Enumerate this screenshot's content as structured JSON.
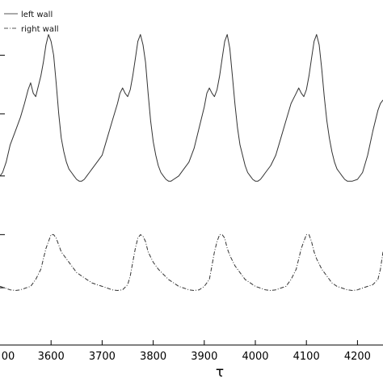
{
  "chart_data": {
    "type": "line",
    "xlabel": "τ",
    "ylabel": "",
    "xlim": [
      3500,
      4250
    ],
    "ylim": [
      0,
      1
    ],
    "x_ticks": [
      3600,
      3700,
      3800,
      3900,
      4000,
      4100,
      4200
    ],
    "x_tick_labels": [
      "3600",
      "3700",
      "3800",
      "3900",
      "4000",
      "4100",
      "4200"
    ],
    "x_tick_partial_label": "00",
    "x_tick_partial_value": 3500,
    "y_ticks": [
      0.166,
      0.32,
      0.49,
      0.67,
      0.84
    ],
    "legend": {
      "position": "top-left"
    },
    "grid": false,
    "series": [
      {
        "name": "left wall",
        "style": "solid",
        "x": [
          3500,
          3505,
          3512,
          3520,
          3530,
          3540,
          3548,
          3555,
          3560,
          3565,
          3570,
          3575,
          3580,
          3585,
          3590,
          3595,
          3600,
          3605,
          3610,
          3615,
          3620,
          3625,
          3630,
          3635,
          3640,
          3645,
          3650,
          3655,
          3660,
          3665,
          3670,
          3675,
          3680,
          3690,
          3700,
          3710,
          3720,
          3730,
          3735,
          3740,
          3745,
          3750,
          3755,
          3760,
          3765,
          3770,
          3775,
          3780,
          3785,
          3790,
          3795,
          3800,
          3805,
          3810,
          3815,
          3820,
          3825,
          3830,
          3835,
          3840,
          3850,
          3860,
          3870,
          3880,
          3890,
          3900,
          3905,
          3910,
          3915,
          3920,
          3925,
          3930,
          3935,
          3940,
          3945,
          3950,
          3955,
          3960,
          3965,
          3970,
          3975,
          3980,
          3985,
          3990,
          3995,
          4000,
          4005,
          4010,
          4015,
          4020,
          4030,
          4040,
          4050,
          4060,
          4070,
          4080,
          4085,
          4090,
          4095,
          4100,
          4105,
          4110,
          4115,
          4120,
          4125,
          4130,
          4135,
          4140,
          4145,
          4150,
          4155,
          4160,
          4165,
          4170,
          4175,
          4180,
          4190,
          4200,
          4210,
          4220,
          4230,
          4240,
          4245,
          4250
        ],
        "y": [
          0.49,
          0.5,
          0.53,
          0.58,
          0.62,
          0.66,
          0.7,
          0.74,
          0.76,
          0.73,
          0.72,
          0.75,
          0.78,
          0.82,
          0.87,
          0.9,
          0.88,
          0.84,
          0.76,
          0.67,
          0.6,
          0.56,
          0.53,
          0.51,
          0.5,
          0.49,
          0.48,
          0.475,
          0.475,
          0.48,
          0.49,
          0.5,
          0.51,
          0.53,
          0.55,
          0.6,
          0.65,
          0.7,
          0.73,
          0.745,
          0.73,
          0.72,
          0.74,
          0.78,
          0.83,
          0.88,
          0.9,
          0.87,
          0.82,
          0.73,
          0.65,
          0.59,
          0.55,
          0.52,
          0.5,
          0.49,
          0.48,
          0.475,
          0.475,
          0.48,
          0.49,
          0.51,
          0.53,
          0.57,
          0.63,
          0.69,
          0.73,
          0.745,
          0.73,
          0.72,
          0.74,
          0.78,
          0.83,
          0.88,
          0.9,
          0.86,
          0.78,
          0.7,
          0.63,
          0.58,
          0.55,
          0.52,
          0.5,
          0.49,
          0.48,
          0.475,
          0.475,
          0.48,
          0.49,
          0.5,
          0.52,
          0.55,
          0.6,
          0.65,
          0.7,
          0.73,
          0.745,
          0.73,
          0.72,
          0.74,
          0.78,
          0.83,
          0.88,
          0.9,
          0.87,
          0.8,
          0.72,
          0.65,
          0.6,
          0.56,
          0.53,
          0.51,
          0.5,
          0.49,
          0.48,
          0.475,
          0.475,
          0.48,
          0.5,
          0.55,
          0.62,
          0.68,
          0.7,
          0.71
        ]
      },
      {
        "name": "right wall",
        "style": "dash-dot",
        "x": [
          3500,
          3510,
          3520,
          3530,
          3540,
          3550,
          3560,
          3570,
          3580,
          3585,
          3590,
          3595,
          3600,
          3605,
          3610,
          3615,
          3620,
          3625,
          3630,
          3640,
          3650,
          3660,
          3670,
          3680,
          3690,
          3700,
          3710,
          3720,
          3730,
          3740,
          3750,
          3755,
          3760,
          3765,
          3770,
          3775,
          3780,
          3785,
          3790,
          3800,
          3810,
          3820,
          3830,
          3840,
          3850,
          3860,
          3870,
          3880,
          3890,
          3900,
          3910,
          3915,
          3920,
          3925,
          3930,
          3935,
          3940,
          3945,
          3950,
          3960,
          3970,
          3980,
          3990,
          4000,
          4010,
          4020,
          4030,
          4040,
          4050,
          4060,
          4070,
          4080,
          4085,
          4090,
          4095,
          4100,
          4105,
          4110,
          4115,
          4120,
          4130,
          4140,
          4150,
          4160,
          4170,
          4180,
          4190,
          4200,
          4210,
          4220,
          4230,
          4240,
          4245,
          4250
        ],
        "y": [
          0.17,
          0.165,
          0.16,
          0.158,
          0.16,
          0.165,
          0.17,
          0.19,
          0.22,
          0.25,
          0.28,
          0.3,
          0.32,
          0.32,
          0.31,
          0.29,
          0.27,
          0.26,
          0.25,
          0.23,
          0.21,
          0.2,
          0.19,
          0.18,
          0.175,
          0.17,
          0.165,
          0.16,
          0.158,
          0.16,
          0.175,
          0.2,
          0.24,
          0.28,
          0.31,
          0.32,
          0.315,
          0.3,
          0.27,
          0.24,
          0.22,
          0.205,
          0.19,
          0.18,
          0.17,
          0.165,
          0.16,
          0.158,
          0.16,
          0.17,
          0.19,
          0.23,
          0.27,
          0.3,
          0.32,
          0.32,
          0.31,
          0.28,
          0.26,
          0.23,
          0.21,
          0.19,
          0.18,
          0.17,
          0.165,
          0.16,
          0.158,
          0.16,
          0.165,
          0.17,
          0.19,
          0.22,
          0.25,
          0.28,
          0.3,
          0.32,
          0.32,
          0.3,
          0.27,
          0.25,
          0.22,
          0.2,
          0.18,
          0.17,
          0.165,
          0.16,
          0.158,
          0.16,
          0.165,
          0.17,
          0.175,
          0.19,
          0.22,
          0.27
        ]
      }
    ]
  }
}
